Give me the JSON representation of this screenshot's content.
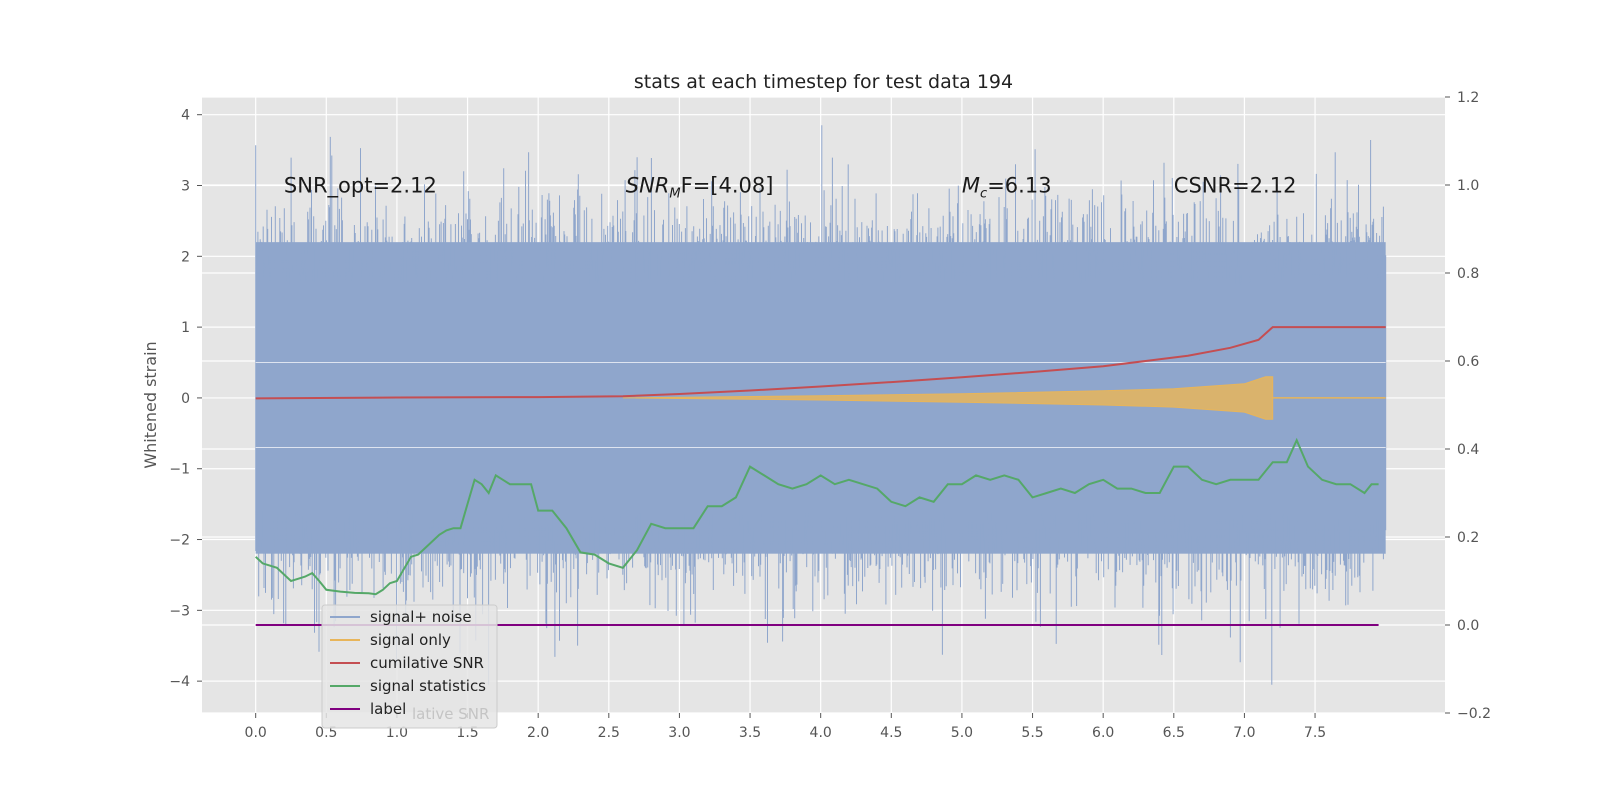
{
  "chart_data": {
    "type": "line",
    "title": "stats at each timestep for test data 194",
    "ylabel": "Whitened strain",
    "y2label": "",
    "xlim": [
      -0.38,
      8.42
    ],
    "ylim": [
      -4.45,
      4.25
    ],
    "y2lim": [
      -0.2,
      1.2
    ],
    "x_ticks": [
      "0.0",
      "0.5",
      "1.0",
      "1.5",
      "2.0",
      "2.5",
      "3.0",
      "3.5",
      "4.0",
      "4.5",
      "5.0",
      "5.5",
      "6.0",
      "6.5",
      "7.0",
      "7.5"
    ],
    "y_ticks": [
      "4",
      "3",
      "2",
      "1",
      "0",
      "−1",
      "−2",
      "−3",
      "−4"
    ],
    "y2_ticks": [
      "1.2",
      "1.0",
      "0.8",
      "0.6",
      "0.4",
      "0.2",
      "0.0",
      "−0.2"
    ],
    "grid": true,
    "legend_position": "lower-left",
    "annotations": [
      {
        "label": "SNR_opt=2.12",
        "x": 0.2,
        "y": 3.0
      },
      {
        "label": "SNR",
        "sub": "M",
        "tail": "F=[4.08]",
        "x": 2.62,
        "y": 3.0
      },
      {
        "label": "M",
        "sub": "c",
        "tail": "=6.13",
        "x": 5.0,
        "y": 3.0
      },
      {
        "label": "CSNR=2.12",
        "x": 6.5,
        "y": 3.0
      }
    ],
    "series": [
      {
        "name": "signal+ noise",
        "axis": "left",
        "color": "#8fa6cc",
        "x_range": [
          0.0,
          8.0
        ],
        "envelope_upper": 2.2,
        "envelope_lower": -2.2,
        "peak_max": 3.85,
        "peak_min": -4.05
      },
      {
        "name": "signal only",
        "axis": "left",
        "color": "#e8b55a",
        "x_range": [
          2.6,
          8.0
        ],
        "envelope_points": [
          [
            2.6,
            0.0
          ],
          [
            4.0,
            0.03
          ],
          [
            5.0,
            0.06
          ],
          [
            6.0,
            0.1
          ],
          [
            6.5,
            0.13
          ],
          [
            7.0,
            0.2
          ],
          [
            7.15,
            0.3
          ],
          [
            7.2,
            0.3
          ]
        ]
      },
      {
        "name": "cumilative SNR",
        "axis": "right",
        "color": "#c44e52",
        "x": [
          0.0,
          1.0,
          2.0,
          2.6,
          3.0,
          3.5,
          4.0,
          4.5,
          5.0,
          5.5,
          6.0,
          6.3,
          6.6,
          6.9,
          7.1,
          7.2,
          7.5,
          8.0
        ],
        "y": [
          0.515,
          0.517,
          0.518,
          0.52,
          0.525,
          0.533,
          0.542,
          0.552,
          0.563,
          0.575,
          0.588,
          0.6,
          0.612,
          0.63,
          0.648,
          0.677,
          0.677,
          0.677
        ]
      },
      {
        "name": "signal statistics",
        "axis": "right",
        "color": "#55a868",
        "x": [
          0.0,
          0.05,
          0.1,
          0.15,
          0.2,
          0.25,
          0.3,
          0.35,
          0.4,
          0.45,
          0.5,
          0.6,
          0.7,
          0.8,
          0.85,
          0.9,
          0.95,
          1.0,
          1.1,
          1.15,
          1.2,
          1.3,
          1.35,
          1.4,
          1.45,
          1.5,
          1.55,
          1.6,
          1.65,
          1.7,
          1.75,
          1.8,
          1.9,
          1.95,
          2.0,
          2.1,
          2.2,
          2.3,
          2.4,
          2.5,
          2.6,
          2.7,
          2.8,
          2.9,
          3.0,
          3.1,
          3.2,
          3.3,
          3.4,
          3.5,
          3.6,
          3.7,
          3.8,
          3.9,
          4.0,
          4.1,
          4.2,
          4.3,
          4.4,
          4.5,
          4.6,
          4.7,
          4.8,
          4.9,
          5.0,
          5.1,
          5.2,
          5.3,
          5.4,
          5.5,
          5.6,
          5.7,
          5.8,
          5.9,
          6.0,
          6.1,
          6.2,
          6.3,
          6.4,
          6.5,
          6.6,
          6.7,
          6.8,
          6.9,
          7.0,
          7.1,
          7.2,
          7.3,
          7.37,
          7.45,
          7.55,
          7.65,
          7.75,
          7.85,
          7.9,
          7.95
        ],
        "y": [
          0.155,
          0.14,
          0.135,
          0.13,
          0.115,
          0.1,
          0.105,
          0.11,
          0.118,
          0.1,
          0.08,
          0.076,
          0.073,
          0.072,
          0.07,
          0.08,
          0.095,
          0.1,
          0.155,
          0.16,
          0.175,
          0.205,
          0.215,
          0.22,
          0.22,
          0.275,
          0.33,
          0.32,
          0.3,
          0.34,
          0.33,
          0.32,
          0.32,
          0.32,
          0.26,
          0.26,
          0.22,
          0.165,
          0.16,
          0.14,
          0.13,
          0.17,
          0.23,
          0.22,
          0.22,
          0.22,
          0.27,
          0.27,
          0.29,
          0.36,
          0.34,
          0.32,
          0.31,
          0.32,
          0.34,
          0.32,
          0.33,
          0.32,
          0.31,
          0.28,
          0.27,
          0.29,
          0.28,
          0.32,
          0.32,
          0.34,
          0.33,
          0.34,
          0.33,
          0.29,
          0.3,
          0.31,
          0.3,
          0.32,
          0.33,
          0.31,
          0.31,
          0.3,
          0.3,
          0.36,
          0.36,
          0.33,
          0.32,
          0.33,
          0.33,
          0.33,
          0.37,
          0.37,
          0.42,
          0.36,
          0.33,
          0.32,
          0.32,
          0.3,
          0.32,
          0.32
        ]
      },
      {
        "name": "label",
        "axis": "right",
        "color": "#800080",
        "x": [
          0.0,
          7.95
        ],
        "y": [
          0.0,
          0.0
        ]
      }
    ],
    "legend_ghost": "lative SNR"
  }
}
